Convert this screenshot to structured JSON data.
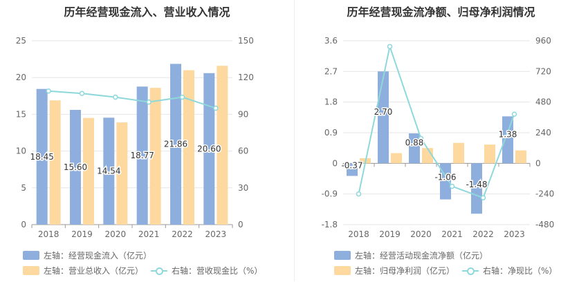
{
  "colors": {
    "bar1": "#8eaedd",
    "bar2": "#fdd9a0",
    "line": "#8ed8db",
    "grid": "#e6e6e6",
    "axis": "#999999",
    "text": "#666666",
    "label": "#333333"
  },
  "left": {
    "title": "历年经营现金流入、营业收入情况",
    "legend": {
      "bar1": "左轴：经营现金流入（亿元）",
      "bar2": "左轴：营业总收入（亿元）",
      "line": "右轴：营收现金比（%）"
    }
  },
  "right": {
    "title": "历年经营现金流净额、归母净利润情况",
    "legend": {
      "bar1": "左轴：经营活动现金流净额（亿元）",
      "bar2": "左轴：归母净利润（亿元）",
      "line": "右轴：净现比（%）"
    }
  },
  "chart_data": [
    {
      "type": "bar",
      "title": "历年经营现金流入、营业收入情况",
      "categories": [
        "2018",
        "2019",
        "2020",
        "2021",
        "2022",
        "2023"
      ],
      "ylim": [
        0,
        25
      ],
      "yticks": [
        "0",
        "5",
        "10",
        "15",
        "20",
        "25"
      ],
      "y2lim": [
        0,
        150
      ],
      "y2ticks": [
        "0",
        "30",
        "60",
        "90",
        "120",
        "150"
      ],
      "series": [
        {
          "name": "左轴：经营现金流入（亿元）",
          "axis": "left",
          "type": "bar",
          "values": [
            18.45,
            15.6,
            14.54,
            18.77,
            21.86,
            20.6
          ],
          "labels": [
            "18.45",
            "15.60",
            "14.54",
            "18.77",
            "21.86",
            "20.60"
          ]
        },
        {
          "name": "左轴：营业总收入（亿元）",
          "axis": "left",
          "type": "bar",
          "values": [
            16.9,
            14.5,
            13.9,
            18.6,
            21.0,
            21.6
          ]
        },
        {
          "name": "右轴：营收现金比（%）",
          "axis": "right",
          "type": "line",
          "values": [
            109,
            107,
            104,
            100,
            104,
            95
          ]
        }
      ]
    },
    {
      "type": "bar",
      "title": "历年经营现金流净额、归母净利润情况",
      "categories": [
        "2018",
        "2019",
        "2020",
        "2021",
        "2022",
        "2023"
      ],
      "ylim": [
        -1.8,
        3.6
      ],
      "yticks": [
        "-1.8",
        "-0.9",
        "0",
        "0.9",
        "1.8",
        "2.7",
        "3.6"
      ],
      "y2lim": [
        -480,
        960
      ],
      "y2ticks": [
        "-480",
        "-240",
        "0",
        "240",
        "480",
        "720",
        "960"
      ],
      "series": [
        {
          "name": "左轴：经营活动现金流净额（亿元）",
          "axis": "left",
          "type": "bar",
          "values": [
            -0.37,
            2.7,
            0.88,
            -1.06,
            -1.48,
            1.38
          ],
          "labels": [
            "-0.37",
            "2.70",
            "0.88",
            "-1.06",
            "-1.48",
            "1.38"
          ]
        },
        {
          "name": "左轴：归母净利润（亿元）",
          "axis": "left",
          "type": "bar",
          "values": [
            0.15,
            0.3,
            0.45,
            0.6,
            0.55,
            0.38
          ]
        },
        {
          "name": "右轴：净现比（%）",
          "axis": "right",
          "type": "line",
          "values": [
            -240,
            915,
            195,
            -180,
            -270,
            385
          ]
        }
      ]
    }
  ]
}
